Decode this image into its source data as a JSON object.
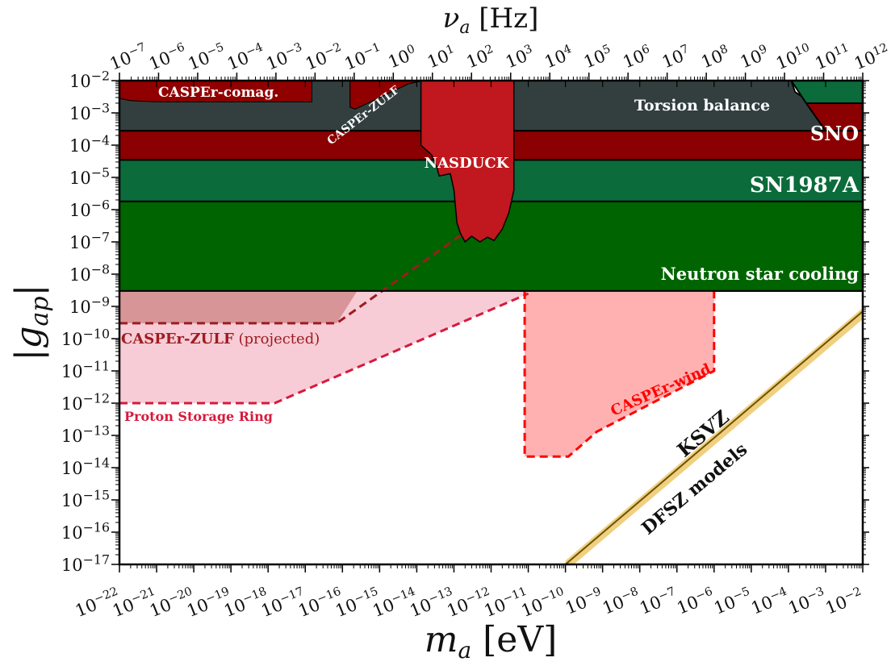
{
  "chart_data": {
    "type": "area",
    "xlabel": "m_a [eV]",
    "ylabel": "|g_ap|",
    "top_xlabel": "ν_a [Hz]",
    "x_scale": "log",
    "y_scale": "log",
    "xlim": [
      1e-22,
      0.01
    ],
    "ylim": [
      1e-17,
      0.01
    ],
    "top_xlim": [
      1e-07,
      1000000000000.0
    ],
    "x_ticks": [
      "10^-22",
      "10^-21",
      "10^-20",
      "10^-19",
      "10^-18",
      "10^-17",
      "10^-16",
      "10^-15",
      "10^-14",
      "10^-13",
      "10^-12",
      "10^-11",
      "10^-10",
      "10^-9",
      "10^-8",
      "10^-7",
      "10^-6",
      "10^-5",
      "10^-4",
      "10^-3",
      "10^-2"
    ],
    "y_ticks": [
      "10^-2",
      "10^-3",
      "10^-4",
      "10^-5",
      "10^-6",
      "10^-7",
      "10^-8",
      "10^-9",
      "10^-10",
      "10^-11",
      "10^-12",
      "10^-13",
      "10^-14",
      "10^-15",
      "10^-16",
      "10^-17"
    ],
    "top_x_ticks": [
      "10^-7",
      "10^-6",
      "10^-5",
      "10^-4",
      "10^-3",
      "10^-2",
      "10^-1",
      "10^0",
      "10^1",
      "10^2",
      "10^3",
      "10^4",
      "10^5",
      "10^6",
      "10^7",
      "10^8",
      "10^9",
      "10^10",
      "10^11",
      "10^12"
    ],
    "grid": false,
    "colors": {
      "neutron_star": "#006400",
      "sn1987a": "#0b6b3a",
      "sno": "#8b0000",
      "torsion": "#333f3f",
      "nasduck": "#c0181e",
      "caspar_comag": "#900000",
      "zulf_fill": "#d89598",
      "zulf_line": "#9e1c20",
      "psr_fill": "#f7ccd6",
      "psr_line": "#d61a3c",
      "wind_fill": "#ffb0b0",
      "wind_line": "#ff0000",
      "qcd_band": "#f0d080",
      "qcd_line": "#6b5200",
      "label_light": "#ffffff",
      "label_dark": "#111111"
    },
    "regions": [
      {
        "name": "Neutron star cooling",
        "x": [
          1e-22,
          0.01,
          0.01,
          1e-22
        ],
        "y": [
          3e-09,
          3e-09,
          1.8e-06,
          1.8e-06
        ]
      },
      {
        "name": "SN1987A",
        "x": [
          1e-22,
          0.01,
          0.01,
          1e-22
        ],
        "y": [
          1.8e-06,
          1.8e-06,
          3.5e-05,
          3.5e-05
        ]
      },
      {
        "name": "SNO",
        "x": [
          1e-22,
          0.01,
          0.01,
          1e-22
        ],
        "y": [
          3.5e-05,
          3.5e-05,
          0.00028,
          0.00028
        ]
      },
      {
        "name": "Torsion balance",
        "x": [
          1e-22,
          0.001,
          0.0003,
          0.00025,
          0.00015,
          0.00012,
          1e-22
        ],
        "y": [
          0.00028,
          0.00028,
          0.002,
          0.003,
          0.0045,
          0.01,
          0.01
        ]
      },
      {
        "name": "SNO-high-mass",
        "x": [
          0.0003,
          0.01,
          0.01,
          0.001
        ],
        "y": [
          0.002,
          0.002,
          0.00028,
          0.00028
        ]
      },
      {
        "name": "SN-high-mass",
        "x": [
          0.0003,
          0.01,
          0.01,
          0.00012
        ],
        "y": [
          0.002,
          0.002,
          0.01,
          0.01
        ]
      },
      {
        "name": "CASPEr-comag.",
        "x": [
          1e-22,
          2e-22,
          1e-21,
          1e-18,
          1.5e-17,
          1.5e-17,
          1e-22
        ],
        "y": [
          0.0028,
          0.0024,
          0.0022,
          0.0022,
          0.0022,
          0.01,
          0.01
        ]
      },
      {
        "name": "CASPEr-ZULF",
        "x": [
          1.6e-16,
          1.6e-16,
          2.2e-16,
          6e-15,
          1.5e-14,
          1e-13,
          1.5e-16
        ],
        "y": [
          0.01,
          0.0015,
          0.0013,
          0.008,
          0.01,
          0.01,
          0.01
        ]
      },
      {
        "name": "NASDUCK",
        "x": [
          1.3e-14,
          2.5e-14,
          3.5e-14,
          4e-14,
          8e-14,
          1e-13,
          1.1e-13,
          1.2e-13,
          1.5e-13,
          2e-13,
          3e-13,
          5e-13,
          8e-13,
          1.2e-12,
          2e-12,
          3e-12,
          4.1e-12,
          4.1e-12,
          1.3e-14
        ],
        "y": [
          0.0001,
          5e-05,
          2e-05,
          1.1e-05,
          1.3e-05,
          4e-06,
          1.2e-06,
          4e-07,
          1.8e-07,
          1e-07,
          1.5e-07,
          1e-07,
          1.4e-07,
          1.1e-07,
          2.5e-07,
          8e-07,
          4e-06,
          0.01,
          0.01
        ]
      }
    ],
    "projections": [
      {
        "name": "CASPEr-ZULF",
        "suffix": " (projected)",
        "x": [
          1e-22,
          7e-17,
          2e-13,
          2e-13,
          1e-22
        ],
        "y": [
          3e-10,
          3e-10,
          2e-07,
          3e-09,
          3e-09
        ]
      },
      {
        "name": "Proton Storage Ring",
        "x": [
          1e-22,
          1.5e-18,
          1e-11,
          1e-11,
          1e-22
        ],
        "y": [
          1e-12,
          1e-12,
          2.5e-09,
          3e-09,
          3e-09
        ]
      },
      {
        "name": "CASPEr-wind",
        "x": [
          8e-12,
          8e-12,
          1.2e-10,
          7e-10,
          1e-06,
          1e-06
        ],
        "y": [
          3e-09,
          2.2e-14,
          2.2e-14,
          1.3e-13,
          1e-11,
          3e-09
        ]
      }
    ],
    "qcd_band": {
      "name": "DFSZ models",
      "line_name": "KSVZ",
      "x": [
        1e-10,
        0.01
      ],
      "center": [
        1e-17,
        7e-10
      ],
      "upper": [
        1.3e-17,
        9e-10
      ],
      "lower": [
        6e-18,
        4e-10
      ]
    },
    "labels": {
      "torsion": "Torsion balance",
      "sno": "SNO",
      "sn1987a": "SN1987A",
      "ns": "Neutron star cooling",
      "nasduck": "NASDUCK",
      "comag": "CASPEr-comag.",
      "zulf_current": "CASPEr-ZULF",
      "zulf_proj_name": "CASPEr-ZULF",
      "zulf_proj_suffix": " (projected)",
      "psr": "Proton Storage Ring",
      "wind": "CASPEr-wind",
      "ksvz": "KSVZ",
      "dfsz": "DFSZ models"
    }
  }
}
